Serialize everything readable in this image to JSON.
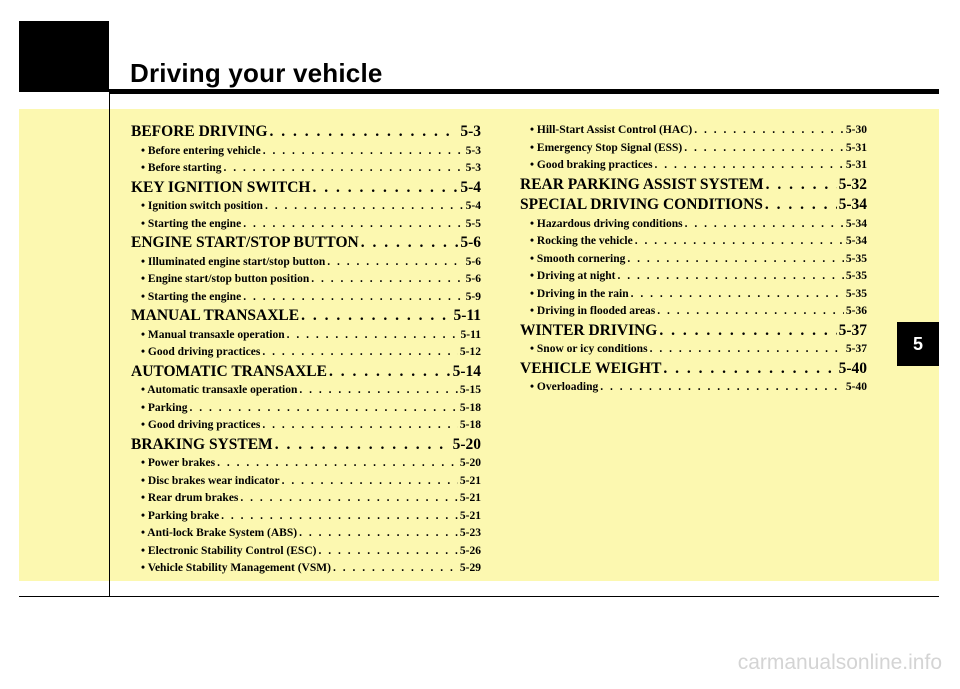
{
  "page": {
    "title": "Driving your vehicle",
    "chapter": "5",
    "watermark": "carmanualsonline.info"
  },
  "colors": {
    "background": "#fcf8b0",
    "block": "#000000"
  },
  "toc_left": [
    {
      "type": "section",
      "title": "BEFORE DRIVING",
      "page": "5-3"
    },
    {
      "type": "sub",
      "title": "• Before entering vehicle",
      "page": "5-3"
    },
    {
      "type": "sub",
      "title": "• Before starting",
      "page": "5-3"
    },
    {
      "type": "section",
      "title": "KEY IGNITION SWITCH",
      "page": "5-4"
    },
    {
      "type": "sub",
      "title": "• Ignition switch position",
      "page": "5-4"
    },
    {
      "type": "sub",
      "title": "• Starting the engine",
      "page": "5-5"
    },
    {
      "type": "section",
      "title": "ENGINE START/STOP BUTTON",
      "page": "5-6"
    },
    {
      "type": "sub",
      "title": "• Illuminated engine start/stop button",
      "page": "5-6"
    },
    {
      "type": "sub",
      "title": "• Engine start/stop button position",
      "page": "5-6"
    },
    {
      "type": "sub",
      "title": "• Starting the engine",
      "page": "5-9"
    },
    {
      "type": "section",
      "title": "MANUAL TRANSAXLE",
      "page": "5-11"
    },
    {
      "type": "sub",
      "title": "• Manual transaxle operation",
      "page": "5-11"
    },
    {
      "type": "sub",
      "title": "• Good driving practices",
      "page": "5-12"
    },
    {
      "type": "section",
      "title": "AUTOMATIC TRANSAXLE",
      "page": "5-14"
    },
    {
      "type": "sub",
      "title": "• Automatic transaxle operation",
      "page": "5-15"
    },
    {
      "type": "sub",
      "title": "• Parking",
      "page": "5-18"
    },
    {
      "type": "sub",
      "title": "• Good driving practices",
      "page": "5-18"
    },
    {
      "type": "section",
      "title": "BRAKING SYSTEM",
      "page": "5-20"
    },
    {
      "type": "sub",
      "title": "• Power brakes",
      "page": "5-20"
    },
    {
      "type": "sub",
      "title": "• Disc brakes wear indicator",
      "page": "5-21"
    },
    {
      "type": "sub",
      "title": "• Rear drum brakes",
      "page": "5-21"
    },
    {
      "type": "sub",
      "title": "• Parking brake",
      "page": "5-21"
    },
    {
      "type": "sub",
      "title": "• Anti-lock Brake System (ABS)",
      "page": "5-23"
    },
    {
      "type": "sub",
      "title": "• Electronic Stability Control (ESC)",
      "page": "5-26"
    },
    {
      "type": "sub",
      "title": "• Vehicle Stability Management (VSM)",
      "page": "5-29"
    }
  ],
  "toc_right": [
    {
      "type": "sub",
      "title": "• Hill-Start Assist Control (HAC)",
      "page": "5-30"
    },
    {
      "type": "sub",
      "title": "• Emergency Stop Signal (ESS)",
      "page": "5-31"
    },
    {
      "type": "sub",
      "title": "• Good braking practices",
      "page": "5-31"
    },
    {
      "type": "section",
      "title": "REAR PARKING ASSIST SYSTEM",
      "page": "5-32"
    },
    {
      "type": "section",
      "title": "SPECIAL DRIVING CONDITIONS",
      "page": "5-34"
    },
    {
      "type": "sub",
      "title": "• Hazardous driving conditions",
      "page": "5-34"
    },
    {
      "type": "sub",
      "title": "• Rocking the vehicle",
      "page": "5-34"
    },
    {
      "type": "sub",
      "title": "• Smooth cornering",
      "page": "5-35"
    },
    {
      "type": "sub",
      "title": "• Driving at night",
      "page": "5-35"
    },
    {
      "type": "sub",
      "title": "• Driving in the rain",
      "page": "5-35"
    },
    {
      "type": "sub",
      "title": "• Driving in flooded areas",
      "page": "5-36"
    },
    {
      "type": "section",
      "title": "WINTER DRIVING",
      "page": "5-37"
    },
    {
      "type": "sub",
      "title": "• Snow or icy conditions",
      "page": "5-37"
    },
    {
      "type": "section",
      "title": "VEHICLE WEIGHT",
      "page": "5-40"
    },
    {
      "type": "sub",
      "title": "• Overloading",
      "page": "5-40"
    }
  ]
}
